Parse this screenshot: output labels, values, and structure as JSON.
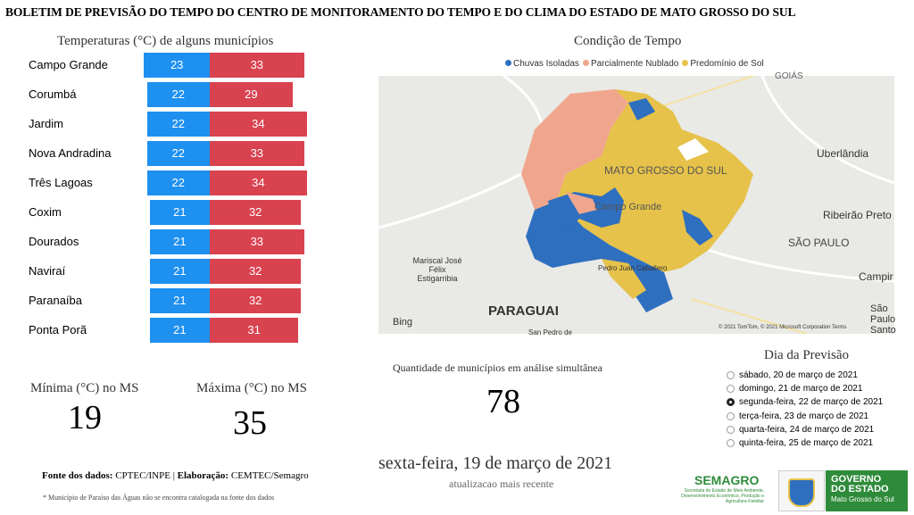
{
  "header": {
    "title": "BOLETIM DE PREVISÃO DO TEMPO DO CENTRO DE MONITORAMENTO DO TEMPO E DO CLIMA DO ESTADO DE MATO GROSSO DO SUL"
  },
  "chart_data": {
    "type": "bar",
    "title": "Temperaturas (°C) de alguns municípios",
    "categories": [
      "Campo Grande",
      "Corumbá",
      "Jardim",
      "Nova Andradina",
      "Três Lagoas",
      "Coxim",
      "Dourados",
      "Naviraí",
      "Paranaíba",
      "Ponta Porã"
    ],
    "series": [
      {
        "color": "#1e90f0",
        "values": [
          23,
          22,
          22,
          22,
          22,
          21,
          21,
          21,
          21,
          21
        ]
      },
      {
        "color": "#d9424f",
        "values": [
          33,
          29,
          34,
          33,
          34,
          32,
          33,
          32,
          32,
          31
        ]
      }
    ]
  },
  "map": {
    "title": "Condição de Tempo",
    "legend": [
      {
        "name": "Chuvas Isoladas",
        "color": "#2f6fbf"
      },
      {
        "name": "Parcialmente Nublado",
        "color": "#f0a68c"
      },
      {
        "name": "Predomínio de Sol",
        "color": "#e6c24a"
      }
    ],
    "labels": [
      "GOIÁS",
      "MATO GROSSO DO SUL",
      "Uberlândia",
      "Campo Grande",
      "Ribeirão Preto",
      "SÃO PAULO",
      "Campir",
      "Mariscal José Félix Estigarribia",
      "PARAGUAI",
      "Pedro Juan Caballero",
      "São Paulo Santo",
      "San Pedro de"
    ],
    "brand": "Bing",
    "attribution": "© 2021 TomTom, © 2021 Microsoft Corporation Terms"
  },
  "stats": {
    "min_label": "Mínima (°C) no MS",
    "min": 19,
    "max_label": "Máxima (°C) no MS",
    "max": 35,
    "count_label": "Quantidade de municípios em análise simultânea",
    "count": 78,
    "date": "sexta-feira, 19 de março de 2021",
    "updated": "atualizacao mais recente"
  },
  "day_picker": {
    "title": "Dia da Previsão",
    "options": [
      "sábado, 20 de março de 2021",
      "domingo, 21 de março de 2021",
      "segunda-feira, 22 de março de 2021",
      "terça-feira, 23 de março de 2021",
      "quarta-feira, 24 de março de 2021",
      "quinta-feira, 25 de março de 2021"
    ],
    "selected": 2
  },
  "footer": {
    "source_label": "Fonte dos dados:",
    "source": "CPTEC/INPE |",
    "made_label": "Elaboração:",
    "made": "CEMTEC/Semagro",
    "note": "* Município de Paraíso das Águas não se encontra catalogada na fonte dos dados",
    "semagro": "SEMAGRO",
    "semagro_sub": "Secretaria de Estado de Meio Ambiente, Desenvolvimento Econômico, Produção e Agricultura Familiar",
    "gov1": "GOVERNO",
    "gov2": "DO ESTADO",
    "gov3": "Mato Grosso do Sul"
  }
}
